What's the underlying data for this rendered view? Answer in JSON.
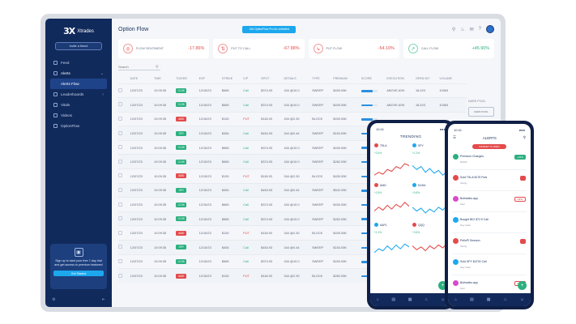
{
  "brand": {
    "logo_mark": "3X",
    "logo_text": "Xtrades"
  },
  "sidebar": {
    "invite_label": "Invite a friend",
    "items": [
      {
        "label": "Feed"
      },
      {
        "label": "Alerts"
      },
      {
        "label": "Alerts Flow"
      },
      {
        "label": "Leaderboards"
      },
      {
        "label": "Vitals"
      },
      {
        "label": "Videos"
      },
      {
        "label": "OptionFlow"
      }
    ],
    "promo": {
      "text": "Sign up to start your free 7-day trial and get access to premium features!",
      "button": "Get Started"
    }
  },
  "header": {
    "title": "Option Flow",
    "banner": "Get OptionFlow Pro for unlimited"
  },
  "stats": [
    {
      "label": "FLOW SENTIMENT",
      "value": "-17.86%",
      "tone": "red"
    },
    {
      "label": "PUT TO CALL",
      "value": "-67.88%",
      "tone": "red"
    },
    {
      "label": "PUT FLOW",
      "value": "-54.10%",
      "tone": "red"
    },
    {
      "label": "CALL FLOW",
      "value": "+45.90%",
      "tone": "green"
    }
  ],
  "search": {
    "placeholder": "Search"
  },
  "table": {
    "columns": [
      "",
      "DATE",
      "TIME",
      "TICKER",
      "EXP",
      "STRIKE",
      "C/P",
      "SPOT",
      "DETAILS",
      "TYPE",
      "PREMIUM",
      "SCORE",
      "EXECUTION",
      "OPEN INT",
      "VOLUME"
    ],
    "rows": [
      {
        "date": "12/07/23",
        "time": "10:09:35",
        "ticker": "CLSK",
        "exp": "12/15/23",
        "strike": "$665",
        "cp": "Call",
        "spot": "$374.93",
        "details": "434 @10.0",
        "type": "SWEEP",
        "premium": "$430.05K",
        "exec": "ABOVE ASK",
        "oi": "18,923",
        "vol": "10063",
        "tone": "green"
      },
      {
        "date": "12/07/23",
        "time": "10:09:35",
        "ticker": "CLSK",
        "exp": "12/15/23",
        "strike": "$665",
        "cp": "Call",
        "spot": "$374.93",
        "details": "434 @10.0",
        "type": "SWEEP",
        "premium": "$430.05K",
        "exec": "ABOVE ASK",
        "oi": "18,923",
        "vol": "10063",
        "tone": "green"
      },
      {
        "date": "12/07/23",
        "time": "10:09:35",
        "ticker": "AMD",
        "exp": "12/15/23",
        "strike": "$130",
        "cp": "PUT",
        "spot": "$118.93",
        "details": "434 @2.30",
        "type": "BLOCK",
        "premium": "$430.05K",
        "exec": "",
        "oi": "",
        "vol": "",
        "tone": "red"
      },
      {
        "date": "12/07/23",
        "time": "10:09:35",
        "ticker": "SPY",
        "exp": "12/15/23",
        "strike": "$454",
        "cp": "Call",
        "spot": "$454.93",
        "details": "344 @0.44",
        "type": "SWEEP",
        "premium": "$154.05K",
        "exec": "",
        "oi": "",
        "vol": "",
        "tone": "green"
      },
      {
        "date": "12/07/23",
        "time": "10:09:35",
        "ticker": "CLSK",
        "exp": "12/15/23",
        "strike": "$665",
        "cp": "Call",
        "spot": "$374.93",
        "details": "434 @10.0",
        "type": "SWEEP",
        "premium": "$430.05K",
        "exec": "",
        "oi": "",
        "vol": "",
        "tone": "green"
      },
      {
        "date": "12/07/23",
        "time": "10:09:35",
        "ticker": "CLSK",
        "exp": "12/15/23",
        "strike": "$665",
        "cp": "Call",
        "spot": "$374.93",
        "details": "434 @10.0",
        "type": "SWEEP",
        "premium": "$262.05K",
        "exec": "",
        "oi": "",
        "vol": "",
        "tone": "green"
      },
      {
        "date": "12/07/23",
        "time": "10:09:35",
        "ticker": "AMD",
        "exp": "12/15/23",
        "strike": "$130",
        "cp": "PUT",
        "spot": "$118.93",
        "details": "344 @2.30",
        "type": "BLOCK",
        "premium": "$430.05K",
        "exec": "",
        "oi": "",
        "vol": "",
        "tone": "red"
      },
      {
        "date": "12/07/23",
        "time": "10:09:35",
        "ticker": "SPY",
        "exp": "12/15/23",
        "strike": "$454",
        "cp": "Call",
        "spot": "$454.93",
        "details": "344 @0.44",
        "type": "SWEEP",
        "premium": "$542.05K",
        "exec": "",
        "oi": "",
        "vol": "",
        "tone": "green"
      },
      {
        "date": "12/07/23",
        "time": "10:09:35",
        "ticker": "CLSK",
        "exp": "12/15/23",
        "strike": "$665",
        "cp": "Call",
        "spot": "$374.93",
        "details": "434 @10.0",
        "type": "SWEEP",
        "premium": "$430.05K",
        "exec": "",
        "oi": "",
        "vol": "",
        "tone": "green"
      },
      {
        "date": "12/07/23",
        "time": "10:09:35",
        "ticker": "CLSK",
        "exp": "12/15/23",
        "strike": "$665",
        "cp": "Call",
        "spot": "$374.93",
        "details": "434 @10.0",
        "type": "SWEEP",
        "premium": "$262.05K",
        "exec": "",
        "oi": "",
        "vol": "",
        "tone": "green"
      },
      {
        "date": "12/07/23",
        "time": "10:09:35",
        "ticker": "AMD",
        "exp": "12/15/23",
        "strike": "$130",
        "cp": "PUT",
        "spot": "$118.93",
        "details": "344 @2.30",
        "type": "BLOCK",
        "premium": "$430.05K",
        "exec": "",
        "oi": "",
        "vol": "",
        "tone": "red"
      },
      {
        "date": "12/07/23",
        "time": "10:09:35",
        "ticker": "SPY",
        "exp": "12/15/23",
        "strike": "$454",
        "cp": "Call",
        "spot": "$454.93",
        "details": "344 @0.44",
        "type": "SWEEP",
        "premium": "$154.05K",
        "exec": "",
        "oi": "",
        "vol": "",
        "tone": "green"
      },
      {
        "date": "12/07/23",
        "time": "10:09:35",
        "ticker": "CLSK",
        "exp": "12/15/23",
        "strike": "$665",
        "cp": "Call",
        "spot": "$374.93",
        "details": "434 @10.0",
        "type": "SWEEP",
        "premium": "$430.05K",
        "exec": "",
        "oi": "",
        "vol": "",
        "tone": "green"
      },
      {
        "date": "12/07/23",
        "time": "10:09:35",
        "ticker": "AMD",
        "exp": "12/15/23",
        "strike": "$130",
        "cp": "PUT",
        "spot": "$118.93",
        "details": "344 @2.30",
        "type": "BLOCK",
        "premium": "$262.05K",
        "exec": "",
        "oi": "",
        "vol": "",
        "tone": "red"
      }
    ]
  },
  "right_column": {
    "header": "DARK POOL",
    "buttons": [
      "DARK POOL",
      "UNUSUAL FLOW"
    ]
  },
  "phone1": {
    "time": "10:41",
    "title": "TRENDING",
    "cards": [
      {
        "ticker": "TSLA",
        "value": "+3.4%",
        "tone": "red"
      },
      {
        "ticker": "SPY",
        "value": "+1.2%",
        "tone": "blue"
      },
      {
        "ticker": "AMD",
        "value": "+2.5%",
        "tone": "red"
      },
      {
        "ticker": "NVDA",
        "value": "+0.8%",
        "tone": "blue"
      },
      {
        "ticker": "AAPL",
        "value": "+1.1%",
        "tone": "blue"
      },
      {
        "ticker": "QQQ",
        "value": "+0.6%",
        "tone": "red"
      }
    ]
  },
  "phone2": {
    "time": "10:41",
    "title": "ALERTS",
    "badge": "MARKET IS OPEN",
    "alerts": [
      {
        "title": "Premium Changes",
        "sub": "Bullish",
        "badge": "+15%",
        "tone": "green"
      },
      {
        "title": "Sold TSLA $175 Puts",
        "sub": "Swing",
        "badge": "",
        "tone": "red"
      },
      {
        "title": "Bullnatics.app",
        "sub": "Alert",
        "badge": "NEW",
        "tone": "pink"
      },
      {
        "title": "Bought BIG $72.5 Call",
        "sub": "Day trade",
        "badge": "",
        "tone": "blue"
      },
      {
        "title": "PelloPI Session",
        "sub": "Swing",
        "badge": "",
        "tone": "red"
      },
      {
        "title": "Sold SPY $4700 Call",
        "sub": "Day trade",
        "badge": "",
        "tone": "blue"
      },
      {
        "title": "Bullnatics.app",
        "sub": "Alert",
        "badge": "NEW",
        "tone": "pink"
      }
    ]
  },
  "icons": [
    "search-icon",
    "bell-icon",
    "chat-icon",
    "help-icon",
    "settings-icon",
    "home-icon",
    "chart-icon",
    "plus-icon"
  ]
}
